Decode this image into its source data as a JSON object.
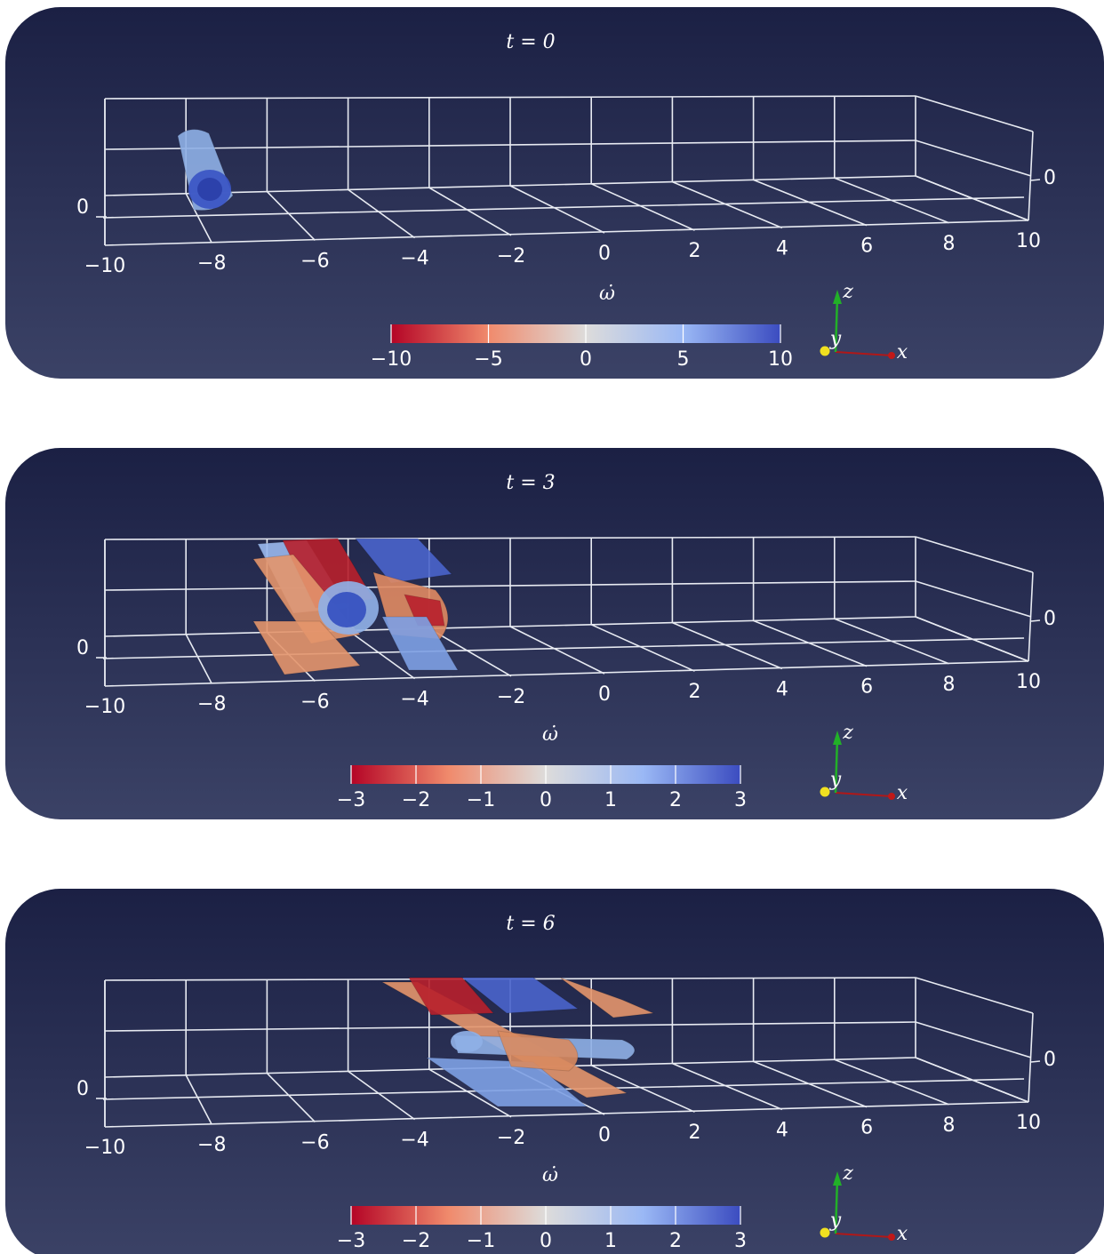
{
  "chart_data": [
    {
      "type": "volume3d",
      "title": "t = 0",
      "xlim": [
        -10,
        10
      ],
      "xticks": [
        {
          "value": -10,
          "label": "−10"
        },
        {
          "value": -8,
          "label": "−8"
        },
        {
          "value": -6,
          "label": "−6"
        },
        {
          "value": -4,
          "label": "−4"
        },
        {
          "value": -2,
          "label": "−2"
        },
        0,
        2,
        4,
        6,
        8,
        10
      ],
      "zticks": [
        0
      ],
      "colorbar": {
        "label": "ω̇",
        "lim": [
          -10,
          10
        ],
        "ticks": [
          {
            "value": -10,
            "label": "−10"
          },
          {
            "value": -5,
            "label": "−5"
          },
          0,
          5,
          10
        ]
      },
      "axis_labels": [
        "x",
        "y",
        "z"
      ]
    },
    {
      "type": "volume3d",
      "title": "t = 3",
      "xlim": [
        -10,
        10
      ],
      "xticks": [
        {
          "value": -10,
          "label": "−10"
        },
        {
          "value": -8,
          "label": "−8"
        },
        {
          "value": -6,
          "label": "−6"
        },
        {
          "value": -4,
          "label": "−4"
        },
        {
          "value": -2,
          "label": "−2"
        },
        0,
        2,
        4,
        6,
        8,
        10
      ],
      "zticks": [
        0
      ],
      "colorbar": {
        "label": "ω̇",
        "lim": [
          -3,
          3
        ],
        "ticks": [
          {
            "value": -3,
            "label": "−3"
          },
          {
            "value": -2,
            "label": "−2"
          },
          {
            "value": -1,
            "label": "−1"
          },
          0,
          1,
          2,
          3
        ]
      },
      "axis_labels": [
        "x",
        "y",
        "z"
      ]
    },
    {
      "type": "volume3d",
      "title": "t = 6",
      "xlim": [
        -10,
        10
      ],
      "xticks": [
        {
          "value": -10,
          "label": "−10"
        },
        {
          "value": -8,
          "label": "−8"
        },
        {
          "value": -6,
          "label": "−6"
        },
        {
          "value": -4,
          "label": "−4"
        },
        {
          "value": -2,
          "label": "−2"
        },
        0,
        2,
        4,
        6,
        8,
        10
      ],
      "zticks": [
        0
      ],
      "colorbar": {
        "label": "ω̇",
        "lim": [
          -3,
          3
        ],
        "ticks": [
          {
            "value": -3,
            "label": "−3"
          },
          {
            "value": -2,
            "label": "−2"
          },
          {
            "value": -1,
            "label": "−1"
          },
          0,
          1,
          2,
          3
        ]
      },
      "axis_labels": [
        "x",
        "y",
        "z"
      ]
    }
  ]
}
